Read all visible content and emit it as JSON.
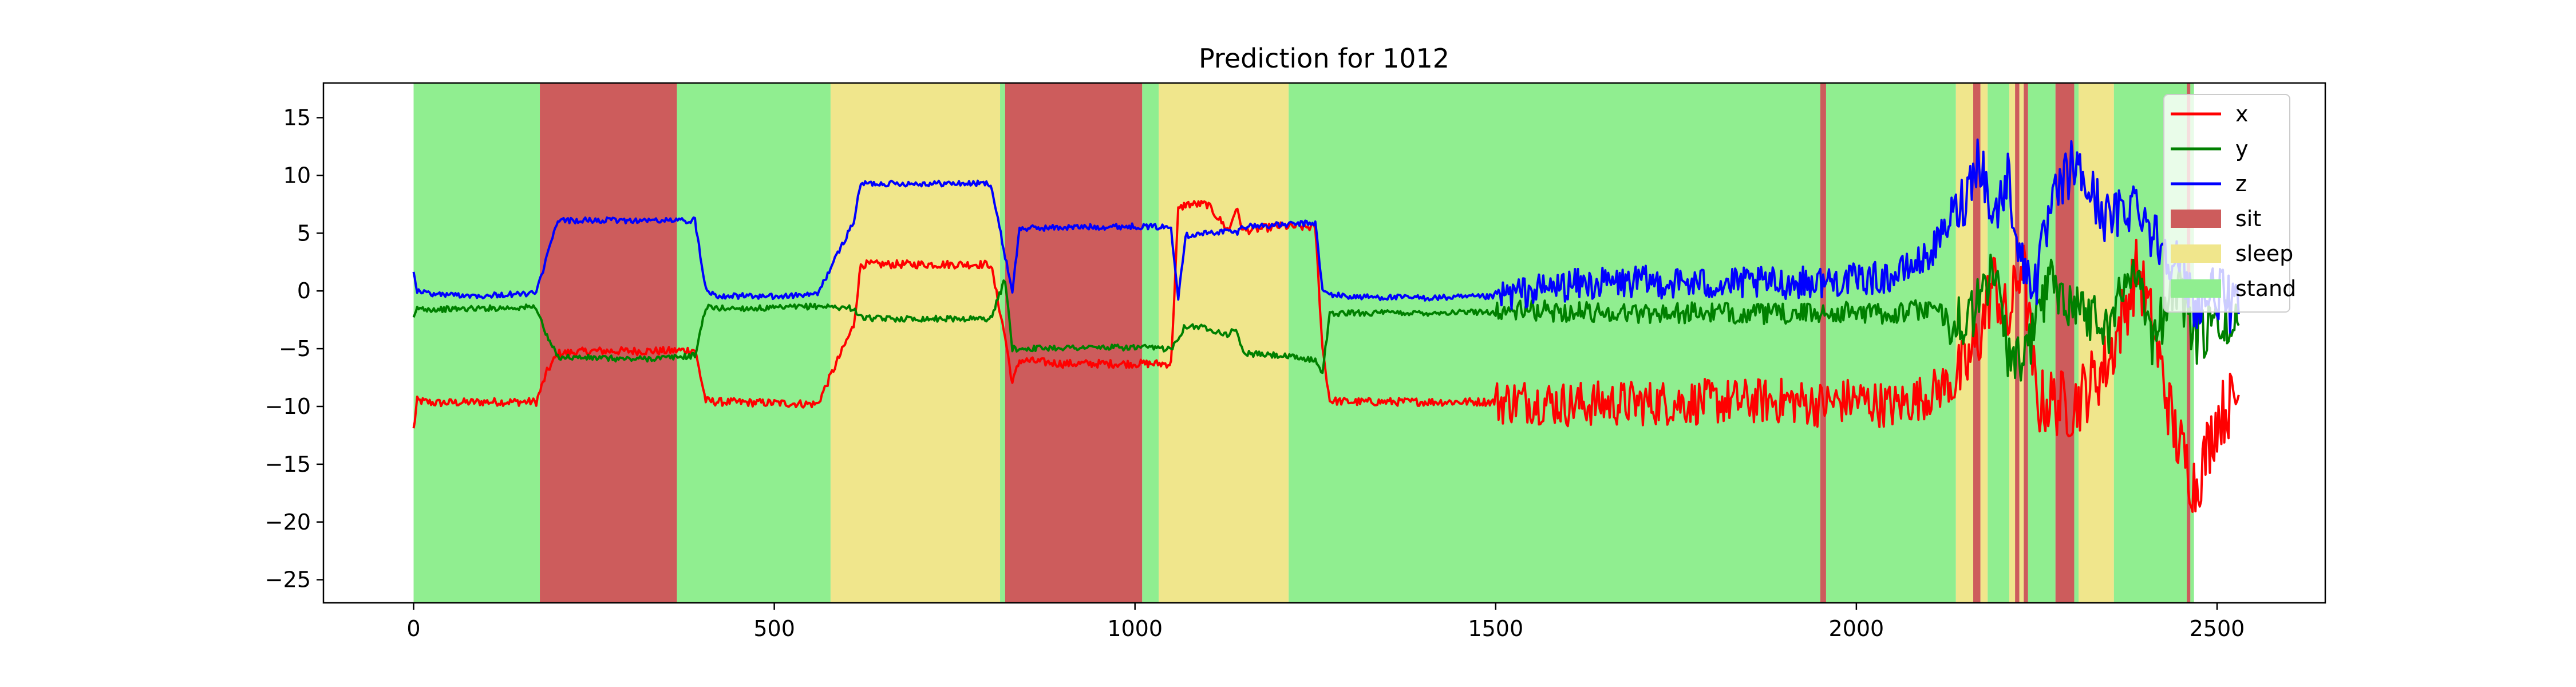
{
  "chart_data": {
    "type": "line",
    "title": "Prediction for 1012",
    "xlabel": "",
    "ylabel": "",
    "xlim": [
      -125,
      2650
    ],
    "ylim": [
      -27,
      18
    ],
    "x_ticks": [
      0,
      500,
      1000,
      1500,
      2000,
      2500
    ],
    "y_ticks": [
      15,
      10,
      5,
      0,
      -5,
      -10,
      -15,
      -20,
      -25
    ],
    "grid": false,
    "legend_position": "top-right",
    "colors": {
      "x": "#ff0000",
      "y": "#008000",
      "z": "#0000ff",
      "sit": "#cd5c5c",
      "sleep": "#f0e68c",
      "stand": "#90ee90"
    },
    "series": [
      {
        "name": "x",
        "x": [
          0,
          5,
          30,
          100,
          170,
          185,
          200,
          250,
          300,
          350,
          390,
          405,
          420,
          500,
          560,
          610,
          620,
          640,
          700,
          800,
          820,
          830,
          840,
          900,
          1000,
          1050,
          1060,
          1070,
          1100,
          1130,
          1140,
          1150,
          1200,
          1250,
          1260,
          1270,
          1300,
          1400,
          1500,
          1550,
          1600,
          1700,
          1800,
          1900,
          1950,
          2000,
          2050,
          2100,
          2150,
          2170,
          2190,
          2210,
          2230,
          2250,
          2270,
          2300,
          2350,
          2390,
          2410,
          2440,
          2470,
          2500,
          2530
        ],
        "values": [
          -12,
          -9.5,
          -9.7,
          -9.6,
          -9.6,
          -7,
          -5.4,
          -5.2,
          -5.2,
          -5.2,
          -5.1,
          -9.5,
          -9.6,
          -9.7,
          -9.8,
          -3,
          2.3,
          2.3,
          2.3,
          2.3,
          -4,
          -8,
          -6,
          -6.3,
          -6.3,
          -6.3,
          7,
          7.5,
          7.5,
          5.2,
          7.2,
          5.2,
          5.6,
          5.5,
          -5,
          -9.5,
          -9.6,
          -9.6,
          -9.6,
          -9.5,
          -9.8,
          -9.7,
          -9.6,
          -9.5,
          -9.8,
          -9.4,
          -10,
          -9,
          -7,
          -4,
          1,
          -3,
          3,
          -9.8,
          -9.5,
          -10,
          -6,
          2,
          -3,
          -12,
          -17,
          -11,
          -9
        ]
      },
      {
        "name": "y",
        "x": [
          0,
          5,
          30,
          100,
          170,
          185,
          200,
          250,
          300,
          350,
          390,
          405,
          420,
          500,
          560,
          610,
          620,
          640,
          700,
          800,
          820,
          830,
          840,
          900,
          1000,
          1050,
          1060,
          1070,
          1100,
          1130,
          1140,
          1150,
          1200,
          1250,
          1260,
          1270,
          1300,
          1400,
          1500,
          1550,
          1600,
          1700,
          1800,
          1900,
          1950,
          2000,
          2050,
          2100,
          2150,
          2170,
          2190,
          2210,
          2230,
          2250,
          2270,
          2300,
          2350,
          2390,
          2410,
          2440,
          2470,
          2500,
          2530
        ],
        "values": [
          -2.5,
          -1.5,
          -1.6,
          -1.5,
          -1.4,
          -4,
          -5.7,
          -5.8,
          -5.9,
          -5.8,
          -5.6,
          -1.4,
          -1.5,
          -1.5,
          -1.3,
          -1.5,
          -2.3,
          -2.4,
          -2.4,
          -2.4,
          1,
          -5,
          -5,
          -4.9,
          -4.9,
          -5,
          -4,
          -3,
          -3.2,
          -3.8,
          -3.2,
          -5.4,
          -5.6,
          -6,
          -7,
          -2,
          -1.9,
          -1.9,
          -1.8,
          -1.7,
          -1.8,
          -1.9,
          -1.9,
          -2,
          -1.9,
          -1.8,
          -2,
          -1.5,
          -3,
          -1,
          2,
          -5,
          -7,
          -2,
          1,
          -1,
          -3,
          3,
          -5,
          1,
          -4,
          -3,
          -3
        ]
      },
      {
        "name": "z",
        "x": [
          0,
          5,
          30,
          100,
          170,
          185,
          200,
          250,
          300,
          350,
          390,
          405,
          420,
          500,
          560,
          610,
          620,
          640,
          700,
          800,
          820,
          830,
          840,
          900,
          1000,
          1050,
          1060,
          1070,
          1100,
          1130,
          1140,
          1150,
          1200,
          1250,
          1260,
          1270,
          1300,
          1400,
          1500,
          1550,
          1600,
          1700,
          1800,
          1900,
          1950,
          2000,
          2050,
          2100,
          2150,
          2170,
          2190,
          2210,
          2230,
          2250,
          2270,
          2300,
          2350,
          2390,
          2410,
          2440,
          2470,
          2500,
          2530
        ],
        "values": [
          1.8,
          0,
          -0.3,
          -0.4,
          -0.2,
          3,
          6.1,
          6.1,
          6.1,
          6.1,
          6.1,
          0.2,
          -0.4,
          -0.5,
          -0.3,
          6,
          9.3,
          9.3,
          9.3,
          9.3,
          3,
          0,
          5.4,
          5.5,
          5.6,
          5.5,
          -0.5,
          4.8,
          5,
          5.2,
          5,
          5.6,
          5.7,
          5.9,
          0,
          -0.3,
          -0.5,
          -0.6,
          -0.5,
          0,
          0.5,
          0.8,
          0.6,
          0.7,
          0.8,
          1,
          1.2,
          3,
          8,
          12,
          6,
          10,
          2,
          1,
          7,
          11,
          6,
          8,
          5,
          3,
          -1,
          0,
          -2
        ]
      }
    ],
    "regions": [
      {
        "label": "stand",
        "start": 0,
        "end": 175
      },
      {
        "label": "sit",
        "start": 175,
        "end": 365
      },
      {
        "label": "stand",
        "start": 365,
        "end": 578
      },
      {
        "label": "sleep",
        "start": 578,
        "end": 813
      },
      {
        "label": "stand",
        "start": 813,
        "end": 820
      },
      {
        "label": "sit",
        "start": 820,
        "end": 1010
      },
      {
        "label": "stand",
        "start": 1010,
        "end": 1033
      },
      {
        "label": "sleep",
        "start": 1033,
        "end": 1213
      },
      {
        "label": "stand",
        "start": 1213,
        "end": 1950
      },
      {
        "label": "sit",
        "start": 1950,
        "end": 1958
      },
      {
        "label": "stand",
        "start": 1958,
        "end": 2138
      },
      {
        "label": "sleep",
        "start": 2138,
        "end": 2162
      },
      {
        "label": "sit",
        "start": 2162,
        "end": 2172
      },
      {
        "label": "sleep",
        "start": 2172,
        "end": 2182
      },
      {
        "label": "stand",
        "start": 2182,
        "end": 2212
      },
      {
        "label": "sleep",
        "start": 2212,
        "end": 2220
      },
      {
        "label": "sit",
        "start": 2220,
        "end": 2226
      },
      {
        "label": "sleep",
        "start": 2226,
        "end": 2232
      },
      {
        "label": "sit",
        "start": 2232,
        "end": 2238
      },
      {
        "label": "stand",
        "start": 2238,
        "end": 2276
      },
      {
        "label": "sit",
        "start": 2276,
        "end": 2302
      },
      {
        "label": "stand",
        "start": 2302,
        "end": 2308
      },
      {
        "label": "sleep",
        "start": 2308,
        "end": 2357
      },
      {
        "label": "stand",
        "start": 2357,
        "end": 2458
      },
      {
        "label": "sit",
        "start": 2458,
        "end": 2463
      },
      {
        "label": "stand",
        "start": 2463,
        "end": 2468
      }
    ],
    "legend": [
      {
        "label": "x",
        "kind": "line",
        "color": "#ff0000"
      },
      {
        "label": "y",
        "kind": "line",
        "color": "#008000"
      },
      {
        "label": "z",
        "kind": "line",
        "color": "#0000ff"
      },
      {
        "label": "sit",
        "kind": "patch",
        "color": "#cd5c5c"
      },
      {
        "label": "sleep",
        "kind": "patch",
        "color": "#f0e68c"
      },
      {
        "label": "stand",
        "kind": "patch",
        "color": "#90ee90"
      }
    ]
  }
}
